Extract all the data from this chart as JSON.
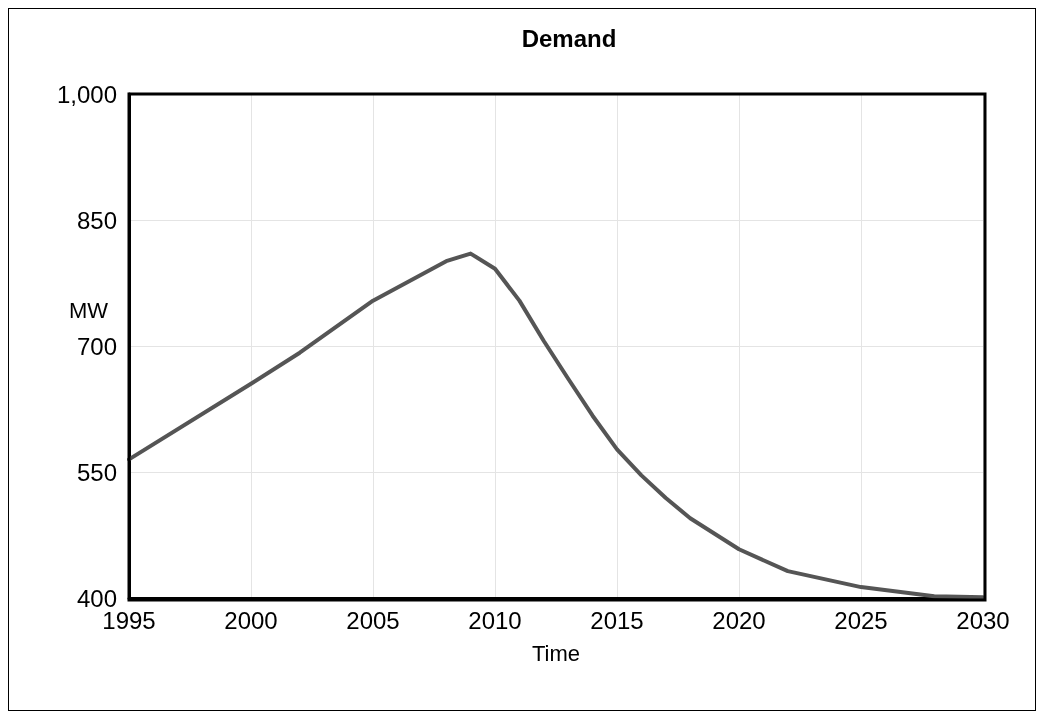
{
  "chart_data": {
    "type": "line",
    "title": "Demand",
    "xlabel": "Time",
    "ylabel": "MW",
    "x": [
      1995,
      2000,
      2002,
      2005,
      2008,
      2009,
      2010,
      2011,
      2012,
      2013,
      2014,
      2015,
      2016,
      2017,
      2018,
      2020,
      2022,
      2025,
      2028,
      2030
    ],
    "series": [
      {
        "color": "#555555",
        "values": [
          565,
          655,
          692,
          754,
          801,
          810,
          792,
          754,
          706,
          661,
          617,
          577,
          546,
          519,
          495,
          458,
          432,
          413,
          402,
          401
        ]
      }
    ],
    "xlim": [
      1995,
      2030
    ],
    "xticks": [
      1995,
      2000,
      2005,
      2010,
      2015,
      2020,
      2025,
      2030
    ],
    "ylim": [
      400,
      1000
    ],
    "yticks": [
      400,
      550,
      700,
      850,
      {
        "value": 1000,
        "label": "1,000"
      }
    ],
    "grid": true,
    "marker": "none",
    "line_style": "solid"
  }
}
